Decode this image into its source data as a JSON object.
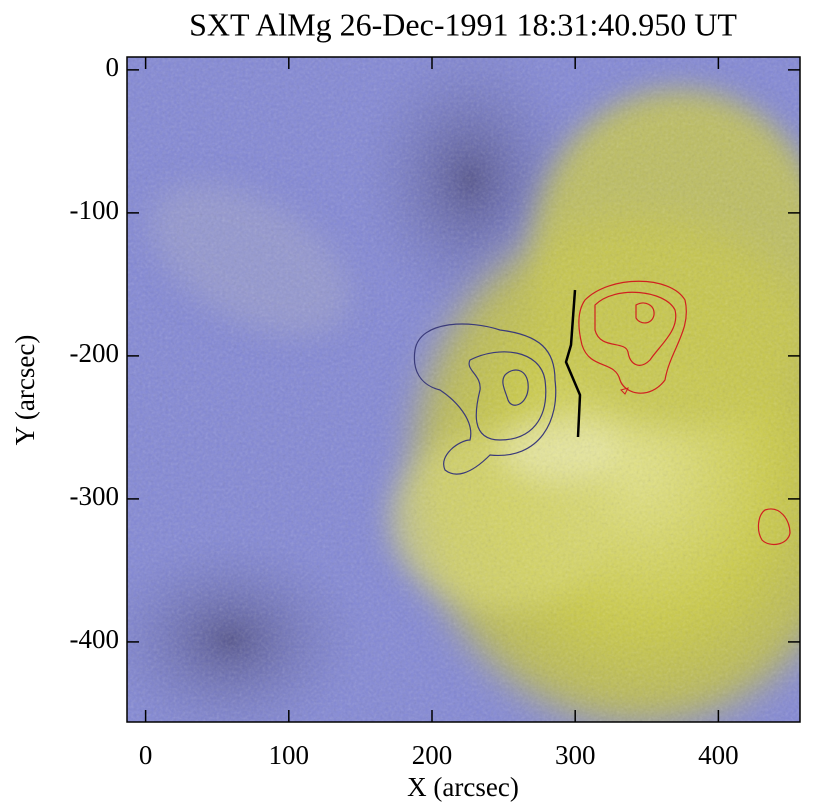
{
  "chart_data": {
    "type": "image",
    "title": "SXT AlMg 26-Dec-1991 18:31:40.950 UT",
    "xlabel": "X (arcsec)",
    "ylabel": "Y (arcsec)",
    "xlim": [
      -13,
      457
    ],
    "ylim": [
      -456,
      9
    ],
    "xticks": [
      0,
      100,
      200,
      300,
      400
    ],
    "yticks": [
      0,
      -100,
      -200,
      -300,
      -400
    ]
  }
}
